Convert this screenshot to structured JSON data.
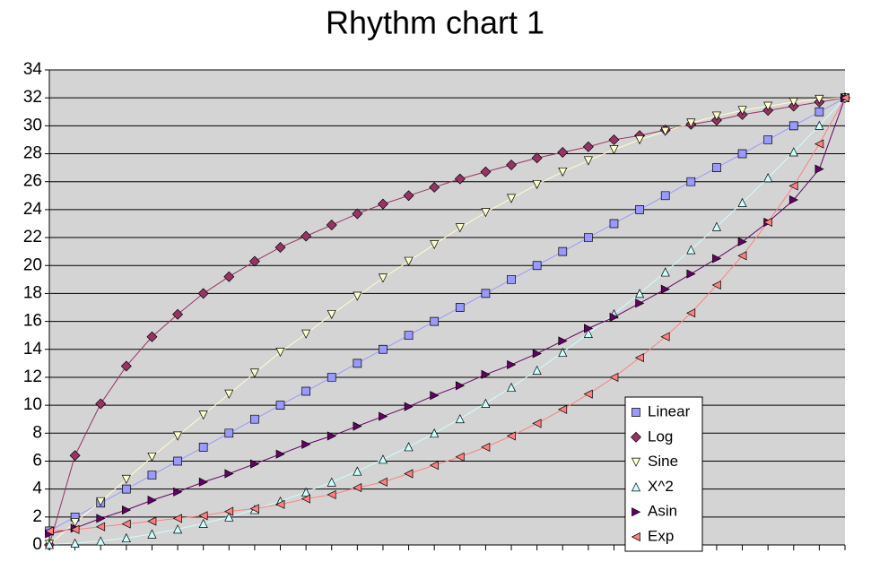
{
  "chart_data": {
    "type": "line",
    "title": "Rhythm chart 1",
    "categories": [
      null,
      null,
      null,
      null,
      null,
      null,
      null,
      null,
      null,
      null,
      null,
      null,
      null,
      null,
      null,
      null,
      null,
      null,
      null,
      null,
      null,
      null,
      null,
      null,
      null,
      null,
      null,
      null,
      null,
      null,
      null,
      null
    ],
    "ylim": [
      0,
      34
    ],
    "yticks": [
      0,
      2,
      4,
      6,
      8,
      10,
      12,
      14,
      16,
      18,
      20,
      22,
      24,
      26,
      28,
      30,
      32,
      34
    ],
    "grid": true,
    "legend": "lower-right",
    "series": [
      {
        "name": "Linear",
        "color": "#9999ff",
        "marker": "square",
        "values": [
          1,
          2,
          3,
          4,
          5,
          6,
          7,
          8,
          9,
          10,
          11,
          12,
          13,
          14,
          15,
          16,
          17,
          18,
          19,
          20,
          21,
          22,
          23,
          24,
          25,
          26,
          27,
          28,
          29,
          30,
          31,
          32
        ]
      },
      {
        "name": "Log",
        "color": "#993366",
        "marker": "diamond",
        "values": [
          0,
          6.4,
          10.1,
          12.8,
          14.9,
          16.5,
          18.0,
          19.2,
          20.3,
          21.3,
          22.1,
          22.9,
          23.7,
          24.4,
          25.0,
          25.6,
          26.2,
          26.7,
          27.2,
          27.7,
          28.1,
          28.5,
          29.0,
          29.3,
          29.7,
          30.1,
          30.4,
          30.8,
          31.1,
          31.4,
          31.7,
          32
        ]
      },
      {
        "name": "Sine",
        "color": "#ffffcc",
        "marker": "triangle-down",
        "values": [
          0.05,
          1.6,
          3.1,
          4.7,
          6.3,
          7.8,
          9.3,
          10.8,
          12.3,
          13.8,
          15.1,
          16.5,
          17.8,
          19.1,
          20.3,
          21.5,
          22.7,
          23.8,
          24.8,
          25.8,
          26.7,
          27.5,
          28.3,
          29.0,
          29.6,
          30.2,
          30.7,
          31.1,
          31.4,
          31.7,
          31.9,
          32
        ]
      },
      {
        "name": "X^2",
        "color": "#ccffff",
        "marker": "triangle-up",
        "values": [
          0.03,
          0.13,
          0.28,
          0.5,
          0.78,
          1.13,
          1.53,
          2,
          2.53,
          3.13,
          3.78,
          4.5,
          5.28,
          6.13,
          7.03,
          8,
          9.03,
          10.13,
          11.28,
          12.5,
          13.78,
          15.13,
          16.53,
          18,
          19.53,
          21.13,
          22.78,
          24.5,
          26.28,
          28.13,
          30.03,
          32
        ]
      },
      {
        "name": "Asin",
        "color": "#660066",
        "marker": "triangle-right",
        "values": [
          0.8,
          1.2,
          1.9,
          2.5,
          3.2,
          3.8,
          4.5,
          5.1,
          5.8,
          6.5,
          7.2,
          7.8,
          8.5,
          9.2,
          9.9,
          10.7,
          11.4,
          12.2,
          12.9,
          13.7,
          14.6,
          15.5,
          16.3,
          17.3,
          18.3,
          19.4,
          20.5,
          21.7,
          23.1,
          24.7,
          26.9,
          32
        ]
      },
      {
        "name": "Exp",
        "color": "#ff8080",
        "marker": "triangle-left",
        "values": [
          1.0,
          1.1,
          1.3,
          1.5,
          1.7,
          1.9,
          2.1,
          2.4,
          2.6,
          2.9,
          3.3,
          3.6,
          4.1,
          4.5,
          5.1,
          5.7,
          6.3,
          7.0,
          7.8,
          8.7,
          9.7,
          10.8,
          12.0,
          13.4,
          14.9,
          16.6,
          18.6,
          20.7,
          23.1,
          25.7,
          28.7,
          32
        ]
      }
    ]
  }
}
